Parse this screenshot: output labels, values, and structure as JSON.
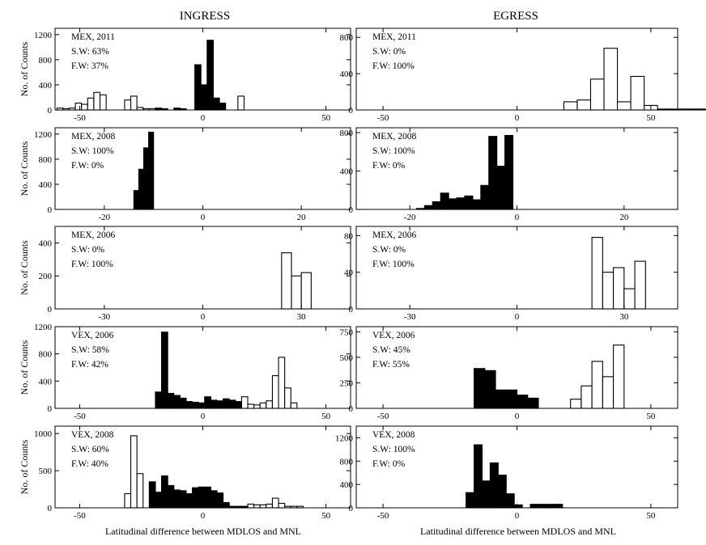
{
  "column_titles": {
    "left": "INGRESS",
    "right": "EGRESS"
  },
  "xlabels": {
    "left": "Latitudinal difference between MDLOS and MNL",
    "right": "Latitudinal difference between MDLOS and MNL"
  },
  "chart_data": [
    {
      "type": "bar",
      "id": "ingress-mex-2011",
      "title": "MEX, 2011",
      "annotations": [
        "MEX, 2011",
        "S.W: 63%",
        "F.W: 37%"
      ],
      "xlabel": "",
      "ylabel": "No. of Counts",
      "xlim": [
        -60,
        60
      ],
      "ylim": [
        0,
        1300
      ],
      "xticks": [
        -50,
        0,
        50
      ],
      "yticks": [
        0,
        400,
        800,
        1200
      ],
      "series": [
        {
          "name": "S.W",
          "fill": "#000000",
          "x": [
            -2,
            0.5,
            3,
            5.5,
            8,
            10.5
          ],
          "values": [
            720,
            400,
            1110,
            190,
            110,
            0
          ]
        },
        {
          "name": "F.W",
          "fill": "#ffffff",
          "x": [
            -58,
            -55.5,
            -53,
            -50.5,
            -48,
            -45.5,
            -43,
            -40.5,
            -38,
            -35.5,
            -33,
            -30.5,
            -28,
            -25.5,
            -23,
            -20.5,
            -18,
            -15.5,
            -13,
            -10.5,
            -8,
            -5.5,
            13,
            15.5
          ],
          "values": [
            30,
            20,
            30,
            110,
            90,
            190,
            280,
            240,
            0,
            0,
            0,
            160,
            220,
            40,
            20,
            20,
            0,
            0,
            0,
            0,
            0,
            0,
            0,
            220
          ]
        },
        {
          "name": "S.W-low",
          "fill": "#000000",
          "x": [
            -25.5,
            -23,
            -20.5,
            -18,
            -15.5,
            -13,
            -10.5,
            -8,
            -5.5,
            -3
          ],
          "values": [
            0,
            0,
            0,
            30,
            20,
            0,
            30,
            20,
            0,
            0
          ]
        }
      ]
    },
    {
      "type": "bar",
      "id": "egress-mex-2011",
      "title": "MEX, 2011",
      "annotations": [
        "MEX, 2011",
        "S.W: 0%",
        "F.W: 100%"
      ],
      "xlabel": "",
      "ylabel": "",
      "xlim": [
        -60,
        60
      ],
      "ylim": [
        0,
        900
      ],
      "xticks": [
        -50,
        0,
        50
      ],
      "yticks": [
        0,
        400,
        800
      ],
      "series": [
        {
          "name": "F.W",
          "fill": "#ffffff",
          "x": [
            20,
            25,
            30,
            35,
            40,
            45,
            50,
            55,
            60,
            65,
            70,
            75,
            80
          ],
          "values": [
            90,
            110,
            340,
            680,
            90,
            370,
            50,
            10,
            10,
            10,
            10,
            10,
            10
          ]
        }
      ]
    },
    {
      "type": "bar",
      "id": "ingress-mex-2008",
      "title": "MEX, 2008",
      "annotations": [
        "MEX, 2008",
        "S.W: 100%",
        "F.W: 0%"
      ],
      "xlabel": "",
      "ylabel": "No. of Counts",
      "xlim": [
        -30,
        30
      ],
      "ylim": [
        0,
        1300
      ],
      "xticks": [
        -20,
        0,
        20
      ],
      "yticks": [
        0,
        400,
        800,
        1200
      ],
      "series": [
        {
          "name": "S.W",
          "fill": "#000000",
          "x": [
            -13.5,
            -12.5,
            -11.5,
            -10.5,
            -9.5,
            -8.5
          ],
          "values": [
            300,
            640,
            980,
            1230,
            0,
            0
          ]
        }
      ]
    },
    {
      "type": "bar",
      "id": "egress-mex-2008",
      "title": "MEX, 2008",
      "annotations": [
        "MEX, 2008",
        "S.W: 100%",
        "F.W: 0%"
      ],
      "xlabel": "",
      "ylabel": "",
      "xlim": [
        -30,
        30
      ],
      "ylim": [
        0,
        850
      ],
      "xticks": [
        -20,
        0,
        20
      ],
      "yticks": [
        0,
        400,
        800
      ],
      "series": [
        {
          "name": "S.W",
          "fill": "#000000",
          "x": [
            -18,
            -16.5,
            -15,
            -13.5,
            -12,
            -10.5,
            -9,
            -7.5,
            -6,
            -4.5,
            -3,
            -1.5,
            0
          ],
          "values": [
            10,
            40,
            80,
            170,
            110,
            120,
            140,
            100,
            250,
            760,
            450,
            770,
            0
          ]
        }
      ]
    },
    {
      "type": "bar",
      "id": "ingress-mex-2006",
      "title": "MEX, 2006",
      "annotations": [
        "MEX, 2006",
        "S.W: 0%",
        "F.W: 100%"
      ],
      "xlabel": "",
      "ylabel": "No. of Counts",
      "xlim": [
        -45,
        45
      ],
      "ylim": [
        0,
        500
      ],
      "xticks": [
        -30,
        0,
        30
      ],
      "yticks": [
        0,
        200,
        400
      ],
      "series": [
        {
          "name": "F.W",
          "fill": "#ffffff",
          "x": [
            25.5,
            28.5,
            31.5
          ],
          "values": [
            340,
            200,
            220
          ]
        }
      ]
    },
    {
      "type": "bar",
      "id": "egress-mex-2006",
      "title": "MEX, 2006",
      "annotations": [
        "MEX, 2006",
        "S.W: 0%",
        "F.W: 100%"
      ],
      "xlabel": "",
      "ylabel": "",
      "xlim": [
        -45,
        45
      ],
      "ylim": [
        0,
        90
      ],
      "xticks": [
        -30,
        0,
        30
      ],
      "yticks": [
        0,
        40,
        80
      ],
      "series": [
        {
          "name": "F.W",
          "fill": "#ffffff",
          "x": [
            22.5,
            25.5,
            28.5,
            31.5,
            34.5
          ],
          "values": [
            78,
            40,
            45,
            22,
            52
          ]
        }
      ]
    },
    {
      "type": "bar",
      "id": "ingress-vex-2006",
      "title": "VEX, 2006",
      "annotations": [
        "VEX, 2006",
        "S.W: 58%",
        "F.W: 42%"
      ],
      "xlabel": "",
      "ylabel": "No. of Counts",
      "xlim": [
        -60,
        60
      ],
      "ylim": [
        0,
        1200
      ],
      "xticks": [
        -50,
        0,
        50
      ],
      "yticks": [
        0,
        400,
        800,
        1200
      ],
      "series": [
        {
          "name": "S.W",
          "fill": "#000000",
          "x": [
            -18,
            -15.5,
            -13,
            -10.5,
            -8,
            -5.5,
            -3,
            -0.5,
            2,
            4.5,
            7,
            9.5,
            12,
            14.5
          ],
          "values": [
            240,
            1120,
            220,
            190,
            150,
            100,
            90,
            80,
            170,
            120,
            110,
            140,
            120,
            100
          ]
        },
        {
          "name": "F.W",
          "fill": "#ffffff",
          "x": [
            17,
            19.5,
            22,
            24.5,
            27,
            29.5,
            32,
            34.5,
            37,
            39.5,
            42,
            44.5
          ],
          "values": [
            170,
            60,
            50,
            80,
            110,
            480,
            750,
            300,
            80,
            0,
            0,
            0
          ]
        }
      ]
    },
    {
      "type": "bar",
      "id": "egress-vex-2006",
      "title": "VEX, 2006",
      "annotations": [
        "VEX, 2006",
        "S.W: 45%",
        "F.W: 55%"
      ],
      "xlabel": "",
      "ylabel": "",
      "xlim": [
        -60,
        60
      ],
      "ylim": [
        0,
        800
      ],
      "xticks": [
        -50,
        0,
        50
      ],
      "yticks": [
        0,
        250,
        500,
        750
      ],
      "series": [
        {
          "name": "S.W",
          "fill": "#000000",
          "x": [
            -14,
            -10,
            -6,
            -2,
            2,
            6
          ],
          "values": [
            390,
            370,
            180,
            180,
            130,
            100
          ]
        },
        {
          "name": "F.W",
          "fill": "#ffffff",
          "x": [
            22,
            26,
            30,
            34,
            38
          ],
          "values": [
            90,
            220,
            460,
            310,
            620
          ]
        }
      ]
    },
    {
      "type": "bar",
      "id": "ingress-vex-2008",
      "title": "VEX, 2008",
      "annotations": [
        "VEX, 2008",
        "S.W: 60%",
        "F.W: 40%"
      ],
      "xlabel": "Latitudinal difference between MDLOS and MNL",
      "ylabel": "No. of Counts",
      "xlim": [
        -60,
        60
      ],
      "ylim": [
        0,
        1100
      ],
      "xticks": [
        -50,
        0,
        50
      ],
      "yticks": [
        0,
        500,
        1000
      ],
      "series": [
        {
          "name": "F.W",
          "fill": "#ffffff",
          "x": [
            -30.5,
            -28,
            -25.5,
            -23,
            19.5,
            22,
            24.5,
            27,
            29.5,
            32,
            34.5,
            37,
            39.5
          ],
          "values": [
            190,
            970,
            460,
            0,
            50,
            40,
            40,
            50,
            130,
            60,
            20,
            20,
            20
          ]
        },
        {
          "name": "S.W",
          "fill": "#000000",
          "x": [
            -20.5,
            -18,
            -15.5,
            -13,
            -10.5,
            -8,
            -5.5,
            -3,
            -0.5,
            2,
            4.5,
            7,
            9.5,
            12,
            14.5,
            17
          ],
          "values": [
            350,
            210,
            430,
            300,
            240,
            230,
            190,
            270,
            280,
            280,
            230,
            200,
            70,
            20,
            20,
            20
          ]
        }
      ]
    },
    {
      "type": "bar",
      "id": "egress-vex-2008",
      "title": "VEX, 2008",
      "annotations": [
        "VEX, 2008",
        "S.W: 100%",
        "F.W: 0%"
      ],
      "xlabel": "Latitudinal difference between MDLOS and MNL",
      "ylabel": "",
      "xlim": [
        -60,
        60
      ],
      "ylim": [
        0,
        1400
      ],
      "xticks": [
        -50,
        0,
        50
      ],
      "yticks": [
        0,
        400,
        800,
        1200
      ],
      "series": [
        {
          "name": "S.W",
          "fill": "#000000",
          "x": [
            -17.5,
            -14.5,
            -11.5,
            -8.5,
            -5.5,
            -2.5,
            0.5,
            3.5,
            6.5,
            9.5,
            12.5,
            15.5
          ],
          "values": [
            260,
            1080,
            460,
            770,
            560,
            240,
            50,
            0,
            60,
            60,
            60,
            60
          ]
        }
      ]
    }
  ]
}
